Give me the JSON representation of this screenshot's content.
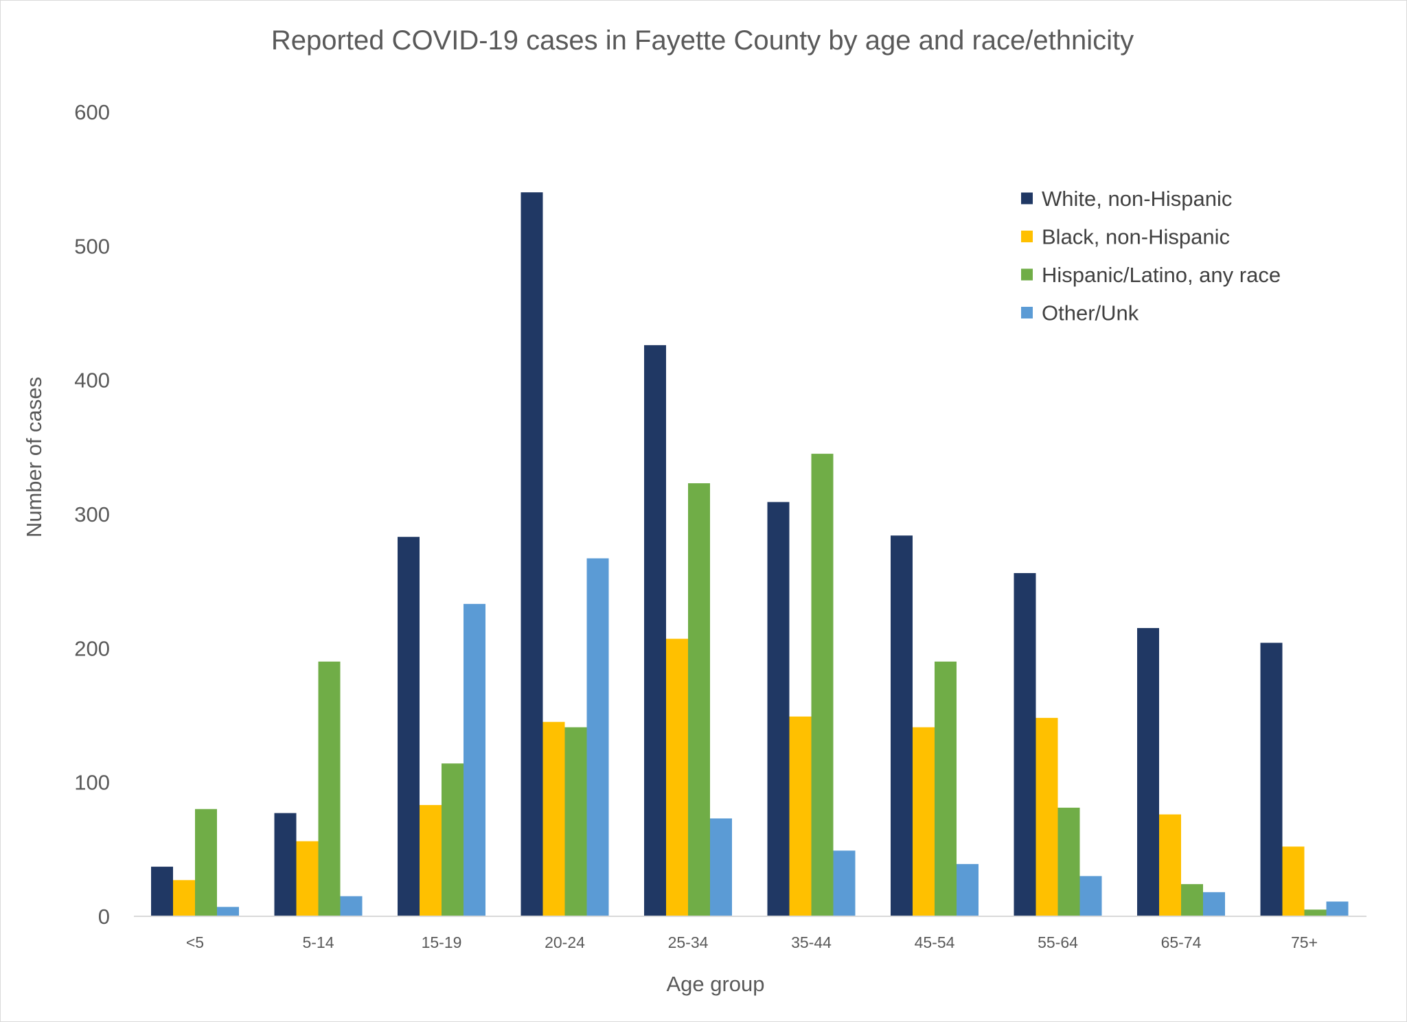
{
  "chart_data": {
    "type": "bar",
    "title": "Reported COVID-19 cases in Fayette County by age and race/ethnicity",
    "xlabel": "Age group",
    "ylabel": "Number of cases",
    "ylim": [
      0,
      600
    ],
    "yticks": [
      0,
      100,
      200,
      300,
      400,
      500,
      600
    ],
    "grid": false,
    "legend_position": "top-right",
    "categories": [
      "<5",
      "5-14",
      "15-19",
      "20-24",
      "25-34",
      "35-44",
      "45-54",
      "55-64",
      "65-74",
      "75+"
    ],
    "series": [
      {
        "name": "White, non-Hispanic",
        "color": "#203864",
        "values": [
          37,
          77,
          283,
          540,
          426,
          309,
          284,
          256,
          215,
          204
        ]
      },
      {
        "name": "Black, non-Hispanic",
        "color": "#FFC000",
        "values": [
          27,
          56,
          83,
          145,
          207,
          149,
          141,
          148,
          76,
          52
        ]
      },
      {
        "name": "Hispanic/Latino, any race",
        "color": "#70AD47",
        "values": [
          80,
          190,
          114,
          141,
          323,
          345,
          190,
          81,
          24,
          5
        ]
      },
      {
        "name": "Other/Unk",
        "color": "#5B9BD5",
        "values": [
          7,
          15,
          233,
          267,
          73,
          49,
          39,
          30,
          18,
          11
        ]
      }
    ]
  }
}
